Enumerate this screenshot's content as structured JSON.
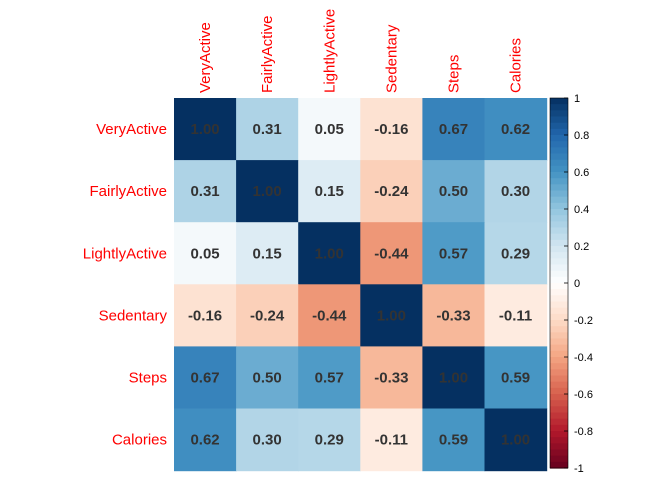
{
  "chart_data": {
    "type": "heatmap",
    "variables": [
      "VeryActive",
      "FairlyActive",
      "LightlyActive",
      "Sedentary",
      "Steps",
      "Calories"
    ],
    "matrix": [
      [
        1.0,
        0.31,
        0.05,
        -0.16,
        0.67,
        0.62
      ],
      [
        0.31,
        1.0,
        0.15,
        -0.24,
        0.5,
        0.3
      ],
      [
        0.05,
        0.15,
        1.0,
        -0.44,
        0.57,
        0.29
      ],
      [
        -0.16,
        -0.24,
        -0.44,
        1.0,
        -0.33,
        -0.11
      ],
      [
        0.67,
        0.5,
        0.57,
        -0.33,
        1.0,
        0.59
      ],
      [
        0.62,
        0.3,
        0.29,
        -0.11,
        0.59,
        1.0
      ]
    ],
    "colorbar": {
      "range": [
        -1,
        1
      ],
      "ticks": [
        "1",
        "0.8",
        "0.6",
        "0.4",
        "0.2",
        "0",
        "-0.2",
        "-0.4",
        "-0.6",
        "-0.8",
        "-1"
      ]
    },
    "colors": {
      "label": "#ff0000",
      "value_text": "#333333",
      "diverging_stops": [
        "#67001F",
        "#B2182B",
        "#D6604D",
        "#F4A582",
        "#FDDBC7",
        "#FFFFFF",
        "#D1E5F0",
        "#92C5DE",
        "#4393C3",
        "#2166AC",
        "#053061"
      ]
    }
  }
}
